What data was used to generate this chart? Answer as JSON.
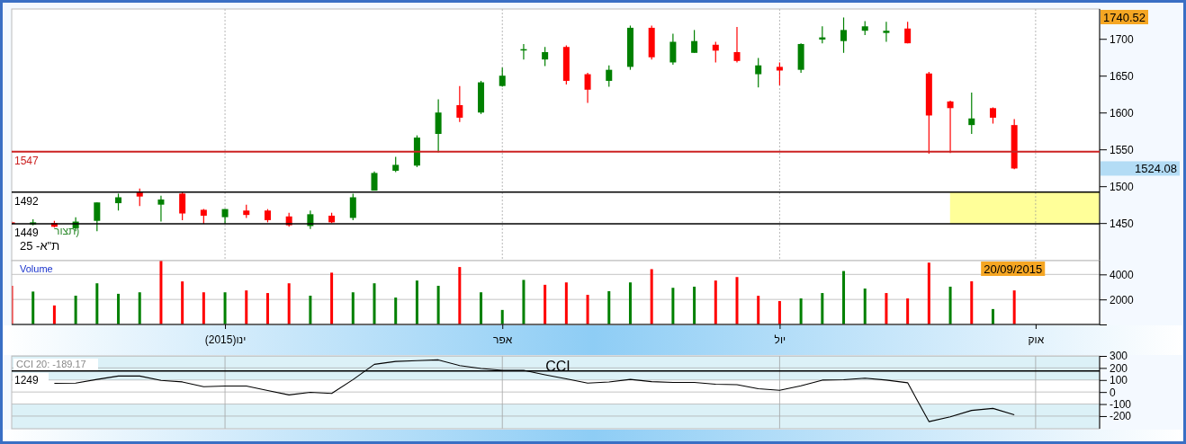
{
  "chart_data": [
    {
      "type": "candlestick",
      "title": "ת\"א- 25",
      "categories": [
        null,
        null,
        null,
        null,
        null,
        null,
        null,
        null,
        null,
        null,
        null,
        null,
        null,
        null,
        null,
        null,
        null,
        null,
        null,
        null,
        null,
        null,
        null,
        null,
        null,
        null,
        null,
        null,
        null,
        null,
        null,
        null,
        null,
        null,
        null,
        null,
        null,
        null,
        null,
        null,
        null,
        null,
        null,
        null,
        null,
        null,
        null,
        null,
        null,
        null,
        null,
        null
      ],
      "ohlc": [
        [
          1451,
          1452,
          1448,
          1449
        ],
        [
          1448,
          1455,
          1447,
          1451
        ],
        [
          1450,
          1453,
          1444,
          1445
        ],
        [
          1443,
          1458,
          1439,
          1452
        ],
        [
          1453,
          1478,
          1439,
          1478
        ],
        [
          1477,
          1490,
          1467,
          1485
        ],
        [
          1492,
          1497,
          1473,
          1486
        ],
        [
          1475,
          1487,
          1452,
          1482
        ],
        [
          1490,
          1493,
          1454,
          1463
        ],
        [
          1468,
          1469,
          1449,
          1460
        ],
        [
          1458,
          1469,
          1449,
          1469
        ],
        [
          1467,
          1475,
          1457,
          1461
        ],
        [
          1467,
          1469,
          1451,
          1454
        ],
        [
          1459,
          1464,
          1445,
          1447
        ],
        [
          1446,
          1467,
          1442,
          1462
        ],
        [
          1460,
          1464,
          1450,
          1451
        ],
        [
          1457,
          1490,
          1454,
          1485
        ],
        [
          1494,
          1520,
          1494,
          1518
        ],
        [
          1521,
          1540,
          1519,
          1529
        ],
        [
          1528,
          1569,
          1526,
          1566
        ],
        [
          1571,
          1618,
          1546,
          1600
        ],
        [
          1610,
          1636,
          1587,
          1593
        ],
        [
          1600,
          1643,
          1598,
          1641
        ],
        [
          1636,
          1661,
          1635,
          1650
        ],
        [
          1685,
          1693,
          1672,
          1686
        ],
        [
          1672,
          1689,
          1663,
          1682
        ],
        [
          1689,
          1691,
          1638,
          1643
        ],
        [
          1652,
          1654,
          1613,
          1631
        ],
        [
          1643,
          1664,
          1635,
          1658
        ],
        [
          1662,
          1718,
          1658,
          1715
        ],
        [
          1715,
          1718,
          1672,
          1675
        ],
        [
          1668,
          1707,
          1665,
          1696
        ],
        [
          1681,
          1712,
          1681,
          1697
        ],
        [
          1692,
          1696,
          1668,
          1684
        ],
        [
          1682,
          1716,
          1668,
          1670
        ],
        [
          1652,
          1674,
          1634,
          1664
        ],
        [
          1662,
          1668,
          1637,
          1657
        ],
        [
          1658,
          1694,
          1654,
          1693
        ],
        [
          1699,
          1717,
          1694,
          1702
        ],
        [
          1697,
          1729,
          1681,
          1712
        ],
        [
          1711,
          1724,
          1705,
          1717
        ],
        [
          1708,
          1723,
          1696,
          1711
        ],
        [
          1714,
          1723,
          1694,
          1694
        ],
        [
          1653,
          1655,
          1544,
          1596
        ],
        [
          1615,
          1616,
          1545,
          1606
        ],
        [
          1583,
          1627,
          1571,
          1592
        ],
        [
          1606,
          1607,
          1585,
          1593
        ],
        [
          1583,
          1591,
          1523,
          1524.08
        ],
        null,
        null,
        null,
        null
      ],
      "colors": [
        "#ff0000",
        "#008000",
        "#ff0000",
        "#008000",
        "#008000",
        "#008000",
        "#ff0000",
        "#008000",
        "#ff0000",
        "#ff0000",
        "#008000",
        "#ff0000",
        "#ff0000",
        "#ff0000",
        "#008000",
        "#ff0000",
        "#008000",
        "#008000",
        "#008000",
        "#008000",
        "#008000",
        "#ff0000",
        "#008000",
        "#008000",
        "#008000",
        "#008000",
        "#ff0000",
        "#ff0000",
        "#008000",
        "#008000",
        "#ff0000",
        "#008000",
        "#008000",
        "#ff0000",
        "#ff0000",
        "#008000",
        "#ff0000",
        "#008000",
        "#008000",
        "#008000",
        "#008000",
        "#008000",
        "#ff0000",
        "#ff0000",
        "#ff0000",
        "#008000",
        "#ff0000",
        "#ff0000",
        null,
        null,
        null,
        null
      ],
      "bands": [
        {
          "axis": "y",
          "from": 1449,
          "to": 1492,
          "color": "#ffff99"
        }
      ],
      "ylim": [
        1399,
        1740.52
      ],
      "yticks": [
        1450,
        1500,
        1550,
        1600,
        1650,
        1700
      ],
      "grid": "x",
      "tick_labels": "y",
      "ref_lines": [
        {
          "axis": "y",
          "value": 1547,
          "label": "1547",
          "color": "#cc2222"
        },
        {
          "axis": "y",
          "value": 1492,
          "label": "1492",
          "color": "#000000"
        },
        {
          "axis": "y",
          "value": 1449,
          "label": "1449",
          "color": "#000000"
        }
      ],
      "annotations": [
        "1740.52",
        "1524.08",
        "(תצור"
      ]
    },
    {
      "type": "bar",
      "title": "Volume",
      "categories": [
        null,
        null,
        null,
        null,
        null,
        null,
        null,
        null,
        null,
        null,
        "ינו(2015)",
        null,
        null,
        null,
        null,
        null,
        null,
        null,
        null,
        null,
        null,
        null,
        null,
        "אפר",
        null,
        null,
        null,
        null,
        null,
        null,
        null,
        null,
        null,
        null,
        null,
        null,
        "יול",
        null,
        null,
        null,
        null,
        null,
        null,
        null,
        null,
        null,
        null,
        null,
        "אוק",
        null,
        null,
        null
      ],
      "values": [
        3090,
        2630,
        1520,
        2300,
        3290,
        2450,
        2570,
        5100,
        3440,
        2570,
        2570,
        2720,
        2510,
        3290,
        2300,
        4140,
        2570,
        3290,
        2150,
        3510,
        3090,
        4590,
        2570,
        1160,
        3560,
        3170,
        3360,
        2370,
        2660,
        3360,
        4420,
        2930,
        3020,
        3510,
        3790,
        2290,
        1870,
        2080,
        2510,
        4270,
        2870,
        2510,
        2080,
        4940,
        3020,
        3450,
        1230,
        2720,
        null,
        null,
        null,
        null
      ],
      "colors": [
        "#ff0000",
        "#008000",
        "#ff0000",
        "#008000",
        "#008000",
        "#008000",
        "#008000",
        "#ff0000",
        "#ff0000",
        "#ff0000",
        "#008000",
        "#ff0000",
        "#ff0000",
        "#ff0000",
        "#008000",
        "#ff0000",
        "#008000",
        "#008000",
        "#008000",
        "#008000",
        "#008000",
        "#ff0000",
        "#008000",
        "#008000",
        "#008000",
        "#ff0000",
        "#ff0000",
        "#ff0000",
        "#008000",
        "#008000",
        "#ff0000",
        "#008000",
        "#008000",
        "#ff0000",
        "#ff0000",
        "#ff0000",
        "#ff0000",
        "#008000",
        "#008000",
        "#008000",
        "#008000",
        "#ff0000",
        "#ff0000",
        "#ff0000",
        "#008000",
        "#ff0000",
        "#008000",
        "#ff0000",
        null,
        null,
        null,
        null
      ],
      "ylim": [
        0,
        5100
      ],
      "yticks": [
        {
          "value": 0,
          "label": null
        },
        2000,
        4000
      ],
      "grid": "y",
      "annotations": [
        "20/09/2015"
      ]
    },
    {
      "type": "line",
      "title": "CCI",
      "subtitle": "CCI 20: -189.17",
      "categories": [
        null,
        null,
        null,
        null,
        null,
        null,
        null,
        null,
        null,
        null,
        null,
        null,
        null,
        null,
        null,
        null,
        null,
        null,
        null,
        null,
        null,
        null,
        null,
        null,
        null,
        null,
        null,
        null,
        null,
        null,
        null,
        null,
        null,
        null,
        null,
        null,
        null,
        null,
        null,
        null,
        null,
        null,
        null,
        null,
        null,
        null,
        null,
        null,
        null,
        null,
        null,
        null
      ],
      "series": [
        {
          "color": "#000000",
          "values": [
            null,
            null,
            72,
            74,
            105,
            133,
            133,
            97,
            84,
            44,
            50,
            50,
            13,
            -24,
            -3,
            -12,
            103,
            230,
            254,
            261,
            267,
            220,
            195,
            180,
            180,
            143,
            109,
            74,
            83,
            105,
            86,
            80,
            80,
            65,
            61,
            27,
            14,
            52,
            99,
            102,
            115,
            99,
            77,
            -246,
            -206,
            -153,
            -136,
            -189,
            null,
            null,
            null,
            null
          ]
        }
      ],
      "ylim": [
        -305,
        300
      ],
      "yticks": [
        300,
        200,
        100,
        0,
        -100,
        -200
      ],
      "grid": true,
      "tick_labels": "y",
      "ref_lines": [
        {
          "axis": "y",
          "value": 175,
          "color": "#000000"
        }
      ],
      "bands": [
        {
          "axis": "y",
          "from": 100,
          "to": 300,
          "color": "#dcf1f7"
        },
        {
          "axis": "y",
          "from": -305,
          "to": -100,
          "color": "#dcf1f7"
        }
      ],
      "annotations": [
        "1249"
      ]
    }
  ]
}
